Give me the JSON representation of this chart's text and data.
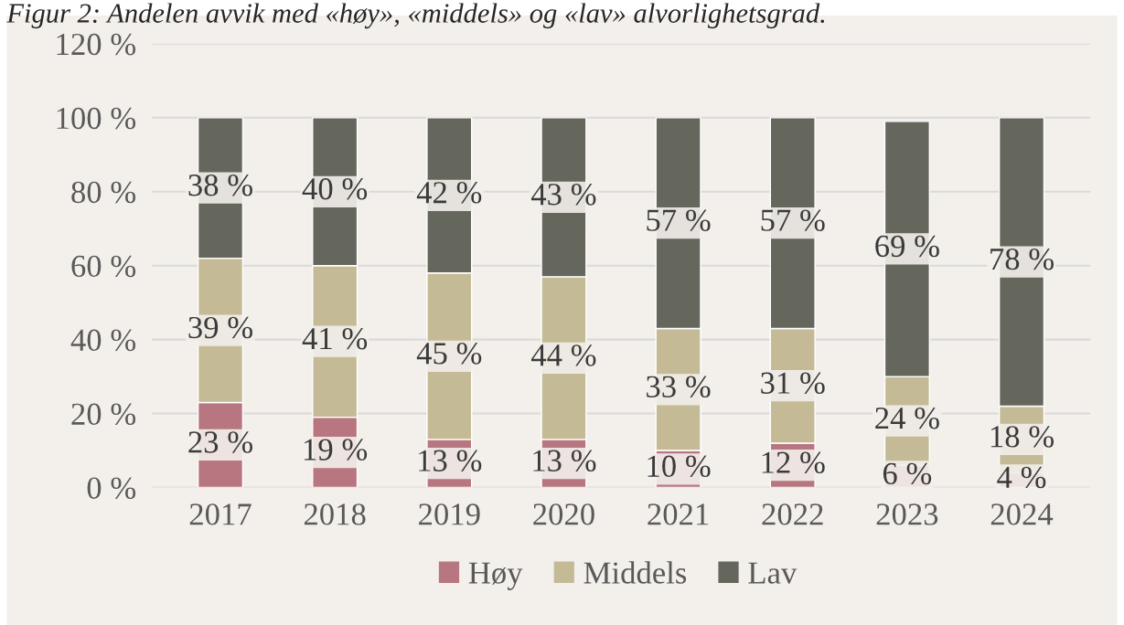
{
  "chart_data": {
    "type": "bar",
    "stacked": true,
    "title": "Figur 2: Andelen avvik med «høy», «middels» og «lav» alvorlighetsgrad.",
    "categories": [
      "2017",
      "2018",
      "2019",
      "2020",
      "2021",
      "2022",
      "2023",
      "2024"
    ],
    "series": [
      {
        "name": "Høy",
        "color": "#b87780",
        "values": [
          23,
          19,
          13,
          13,
          10,
          12,
          6,
          4
        ],
        "value_labels": [
          "23 %",
          "19 %",
          "13 %",
          "13 %",
          "10 %",
          "12 %",
          "6 %",
          "4 %"
        ]
      },
      {
        "name": "Middels",
        "color": "#c4bb96",
        "values": [
          39,
          41,
          45,
          44,
          33,
          31,
          24,
          18
        ],
        "value_labels": [
          "39 %",
          "41 %",
          "45 %",
          "44 %",
          "33 %",
          "31 %",
          "24 %",
          "18 %"
        ]
      },
      {
        "name": "Lav",
        "color": "#65665c",
        "values": [
          38,
          40,
          42,
          43,
          57,
          57,
          69,
          78
        ],
        "value_labels": [
          "38 %",
          "40 %",
          "42 %",
          "43 %",
          "57 %",
          "57 %",
          "69 %",
          "78 %"
        ]
      }
    ],
    "ylim": [
      0,
      120
    ],
    "yticks": [
      {
        "value": 0,
        "label": "0 %"
      },
      {
        "value": 20,
        "label": "20 %"
      },
      {
        "value": 40,
        "label": "40 %"
      },
      {
        "value": 60,
        "label": "60 %"
      },
      {
        "value": 80,
        "label": "80 %"
      },
      {
        "value": 100,
        "label": "100 %"
      },
      {
        "value": 120,
        "label": "120 %"
      }
    ],
    "grid": "y",
    "legend": "bottom"
  }
}
